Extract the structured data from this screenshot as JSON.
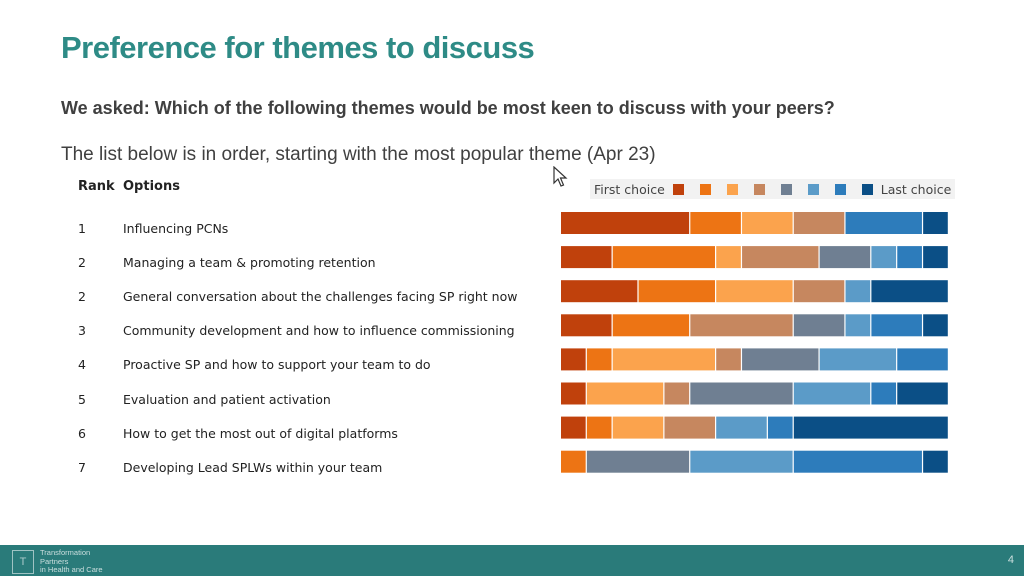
{
  "title": "Preference for themes to discuss",
  "question": "We asked: Which of the following themes would be most keen to discuss with your peers?",
  "intro": "The list below is in order, starting with the most popular theme (Apr 23)",
  "table": {
    "rank_header": "Rank",
    "options_header": "Options"
  },
  "legend": {
    "first_label": "First choice",
    "last_label": "Last choice"
  },
  "footer": {
    "org_line1": "Transformation",
    "org_line2": "Partners",
    "org_line3": "in Health and Care",
    "page_number": "4"
  },
  "colors": [
    "#c0410c",
    "#ed7414",
    "#fba34d",
    "#c6875f",
    "#6f7f92",
    "#5b9bc8",
    "#2d7cbb",
    "#0b4f86"
  ],
  "chart_data": {
    "type": "bar",
    "stacked": "percent",
    "orientation": "horizontal",
    "categories": [
      "Influencing PCNs",
      "Managing a team & promoting retention",
      "General conversation about the challenges facing SP right now",
      "Community development and how to influence commissioning",
      "Proactive SP and how to support your team to do",
      "Evaluation and patient activation",
      "How to get the most out of digital platforms",
      "Developing Lead SPLWs within your team"
    ],
    "ranks": [
      "1",
      "2",
      "2",
      "3",
      "4",
      "5",
      "6",
      "7"
    ],
    "series": [
      {
        "values": [
          5,
          2,
          3,
          2,
          1,
          1,
          1,
          0
        ]
      },
      {
        "values": [
          2,
          4,
          3,
          3,
          1,
          0,
          1,
          1
        ]
      },
      {
        "values": [
          2,
          1,
          3,
          0,
          4,
          3,
          2,
          0
        ]
      },
      {
        "values": [
          2,
          3,
          2,
          4,
          1,
          1,
          2,
          0
        ]
      },
      {
        "values": [
          0,
          2,
          0,
          2,
          3,
          4,
          0,
          4
        ]
      },
      {
        "values": [
          0,
          1,
          1,
          1,
          3,
          3,
          2,
          4
        ]
      },
      {
        "values": [
          3,
          1,
          0,
          2,
          2,
          1,
          1,
          5
        ]
      },
      {
        "values": [
          1,
          1,
          3,
          1,
          0,
          2,
          6,
          1
        ]
      }
    ]
  }
}
